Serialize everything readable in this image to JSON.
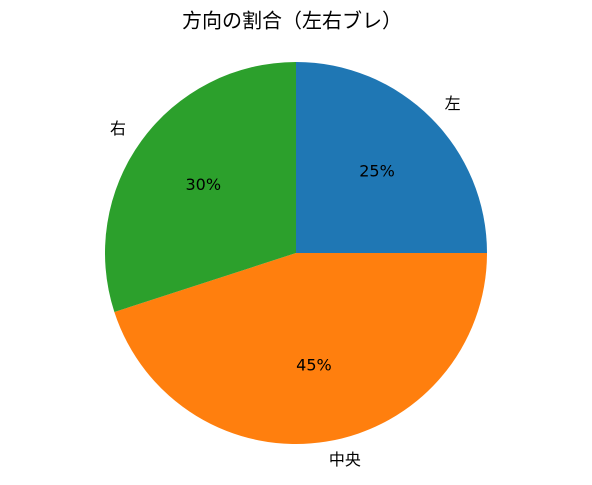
{
  "chart_data": {
    "type": "pie",
    "title": "方向の割合（左右ブレ）",
    "categories": [
      "左",
      "中央",
      "右"
    ],
    "values": [
      25,
      45,
      30
    ],
    "value_labels": [
      "25%",
      "45%",
      "30%"
    ],
    "colors": [
      "#1f77b4",
      "#ff7f0e",
      "#2ca02c"
    ],
    "startangle": 90,
    "counterclock": false
  }
}
